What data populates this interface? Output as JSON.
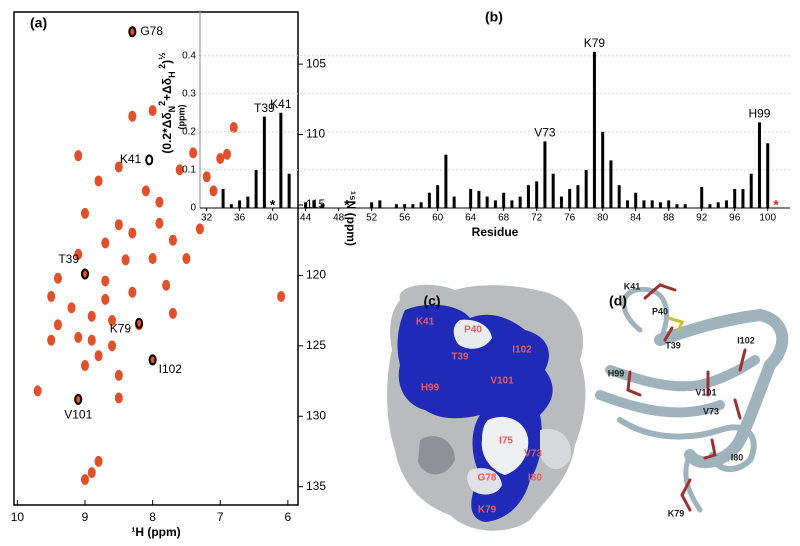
{
  "chart_data": [
    {
      "type": "scatter",
      "title": "(a)",
      "xlabel": "¹H (ppm)",
      "ylabel": "¹⁵N (ppm)",
      "color": "#e0502a",
      "annotation_color": "#000000",
      "xlim": [
        10.05,
        5.85
      ],
      "ylim": [
        136.3,
        101.3
      ],
      "xticks": [
        10,
        9,
        8,
        7,
        6
      ],
      "yticks": [
        105,
        110,
        115,
        120,
        125,
        130,
        135
      ],
      "x": [
        8.3,
        8.3,
        8.0,
        9.1,
        7.4,
        7.0,
        6.9,
        6.8,
        7.6,
        7.2,
        8.5,
        8.8,
        8.1,
        7.1,
        9.0,
        7.9,
        8.5,
        8.3,
        8.7,
        9.1,
        8.0,
        8.4,
        7.5,
        9.0,
        9.4,
        8.7,
        7.8,
        8.3,
        8.7,
        9.5,
        6.1,
        9.2,
        8.9,
        8.6,
        8.2,
        7.7,
        9.4,
        9.1,
        8.9,
        9.5,
        8.6,
        8.0,
        8.8,
        9.0,
        8.5,
        9.7,
        9.1,
        8.5,
        8.8,
        8.9,
        9.0,
        7.7,
        7.3,
        7.9
      ],
      "values": [
        102.7,
        108.7,
        108.3,
        111.5,
        111.3,
        111.7,
        111.4,
        109.5,
        112.5,
        113.0,
        112.3,
        113.3,
        114.0,
        114.0,
        115.6,
        116.3,
        116.4,
        117.0,
        117.7,
        118.5,
        118.8,
        118.9,
        118.8,
        119.9,
        120.2,
        120.4,
        120.7,
        121.2,
        121.7,
        121.5,
        121.5,
        122.3,
        122.9,
        123.2,
        123.5,
        122.7,
        123.5,
        124.4,
        124.6,
        124.6,
        125.0,
        126.0,
        125.7,
        126.4,
        127.1,
        128.2,
        128.8,
        128.7,
        133.2,
        134.0,
        134.5,
        117.5,
        116.7,
        114.8
      ],
      "annotations": [
        {
          "text": "G78",
          "x": 8.3,
          "y": 102.7
        },
        {
          "text": "K41",
          "x": 8.05,
          "y": 111.8
        },
        {
          "text": "T39",
          "x": 9.0,
          "y": 119.9
        },
        {
          "text": "K79",
          "x": 8.2,
          "y": 123.4
        },
        {
          "text": "I102",
          "x": 8.0,
          "y": 126.0
        },
        {
          "text": "V101",
          "x": 9.1,
          "y": 128.8
        }
      ]
    },
    {
      "type": "bar",
      "title": "(b)",
      "xlabel": "Residue",
      "color": "#000000",
      "grid": true,
      "ylabel": [
        {
          "text": "(0.2*Δδ"
        },
        {
          "text": "N",
          "pos": "sub"
        },
        {
          "text": "2",
          "pos": "sup"
        },
        {
          "text": "+Δδ"
        },
        {
          "text": "H",
          "pos": "sub"
        },
        {
          "text": " 2",
          "pos": "sup"
        },
        {
          "text": ")"
        },
        {
          "text": "½",
          "pos": "sup"
        }
      ],
      "ylabel_unit": "(ppm)",
      "xlim": [
        31.2,
        102.7
      ],
      "ylim": [
        0,
        0.52
      ],
      "xticks": [
        32,
        36,
        40,
        44,
        48,
        52,
        56,
        60,
        64,
        68,
        72,
        76,
        80,
        84,
        88,
        92,
        96,
        100
      ],
      "yticks": [
        0,
        0.1,
        0.2,
        0.3,
        0.4
      ],
      "x": [
        34,
        35,
        36,
        37,
        38,
        39,
        41,
        42,
        44,
        45,
        46,
        52,
        53,
        55,
        56,
        57,
        58,
        59,
        60,
        61,
        62,
        64,
        65,
        66,
        67,
        68,
        69,
        70,
        71,
        72,
        73,
        74,
        75,
        76,
        77,
        78,
        79,
        80,
        81,
        82,
        83,
        84,
        85,
        86,
        87,
        88,
        89,
        90,
        92,
        93,
        94,
        95,
        96,
        97,
        98,
        99,
        100
      ],
      "values": [
        0.05,
        0.01,
        0.02,
        0.03,
        0.1,
        0.24,
        0.25,
        0.09,
        0.015,
        0.02,
        0.01,
        0.015,
        0.02,
        0.01,
        0.01,
        0.01,
        0.015,
        0.04,
        0.06,
        0.14,
        0.03,
        0.05,
        0.045,
        0.03,
        0.02,
        0.04,
        0.02,
        0.03,
        0.06,
        0.07,
        0.175,
        0.09,
        0.03,
        0.05,
        0.06,
        0.1,
        0.41,
        0.2,
        0.125,
        0.06,
        0.02,
        0.04,
        0.02,
        0.02,
        0.015,
        0.02,
        0.01,
        0.01,
        0.055,
        0.01,
        0.015,
        0.02,
        0.05,
        0.05,
        0.09,
        0.225,
        0.17
      ],
      "annotations": [
        {
          "text": "T39",
          "x": 39
        },
        {
          "text": "K41",
          "x": 41
        },
        {
          "text": "V73",
          "x": 73
        },
        {
          "text": "K79",
          "x": 79
        },
        {
          "text": "H99",
          "x": 99
        }
      ],
      "asterisks": [
        {
          "text": "*",
          "x": 40,
          "color": "#000000"
        },
        {
          "text": "*",
          "x": 49,
          "color": "#000000"
        },
        {
          "text": "*",
          "x": 101,
          "color": "#e8202a"
        }
      ]
    }
  ],
  "structures": {
    "c": {
      "label": "(c)",
      "residues": [
        "K41",
        "P40",
        "T39",
        "I102",
        "H99",
        "V101",
        "I75",
        "V73",
        "G78",
        "I80",
        "K79"
      ]
    },
    "d": {
      "label": "(d)",
      "residues": [
        "K41",
        "P40",
        "T39",
        "I102",
        "H99",
        "V101",
        "V73",
        "I80",
        "K79"
      ]
    }
  }
}
